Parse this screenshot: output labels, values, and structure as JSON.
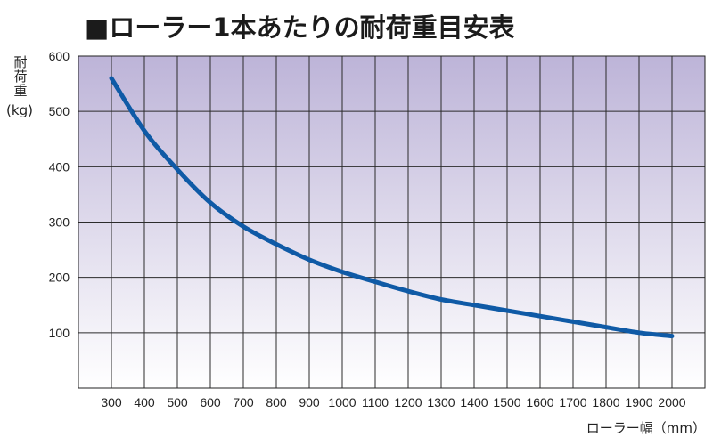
{
  "chart_data": {
    "type": "line",
    "title": "■ローラー1本あたりの耐荷重目安表",
    "ylabel": {
      "name": "耐荷重",
      "unit": "(kg)"
    },
    "xlabel": "ローラー幅（mm）",
    "xlim": [
      200,
      2100
    ],
    "ylim": [
      0,
      600
    ],
    "x_ticks": [
      300,
      400,
      500,
      600,
      700,
      800,
      900,
      1000,
      1100,
      1200,
      1300,
      1400,
      1500,
      1600,
      1700,
      1800,
      1900,
      2000
    ],
    "y_ticks": [
      100,
      200,
      300,
      400,
      500,
      600
    ],
    "grid": true,
    "line_color": "#0f5aa6",
    "background_gradient": [
      "#bdb4d8",
      "#ffffff"
    ],
    "series": [
      {
        "x": [
          300,
          400,
          500,
          600,
          700,
          800,
          900,
          1000,
          1100,
          1200,
          1300,
          1400,
          1500,
          1600,
          1700,
          1800,
          1900,
          2000
        ],
        "y": [
          560,
          465,
          395,
          335,
          292,
          260,
          232,
          210,
          192,
          175,
          160,
          150,
          140,
          130,
          120,
          110,
          100,
          94
        ]
      }
    ]
  }
}
